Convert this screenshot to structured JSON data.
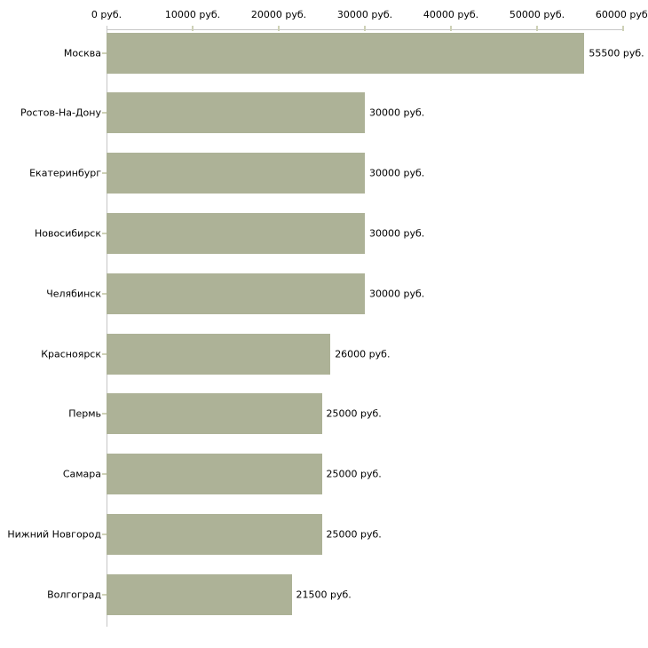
{
  "chart_data": {
    "type": "bar",
    "orientation": "horizontal",
    "title": "",
    "xlabel": "",
    "ylabel": "",
    "unit": "руб.",
    "categories": [
      "Москва",
      "Ростов-На-Дону",
      "Екатеринбург",
      "Новосибирск",
      "Челябинск",
      "Красноярск",
      "Пермь",
      "Самара",
      "Нижний Новгород",
      "Волгоград"
    ],
    "values": [
      55500,
      30000,
      30000,
      30000,
      30000,
      26000,
      25000,
      25000,
      25000,
      21500
    ],
    "value_labels": [
      "55500 руб.",
      "30000 руб.",
      "30000 руб.",
      "30000 руб.",
      "30000 руб.",
      "26000 руб.",
      "25000 руб.",
      "25000 руб.",
      "25000 руб.",
      "21500 руб."
    ],
    "x_ticks": [
      0,
      10000,
      20000,
      30000,
      40000,
      50000,
      60000
    ],
    "x_tick_labels": [
      "0 руб.",
      "10000 руб.",
      "20000 руб.",
      "30000 руб.",
      "40000 руб.",
      "50000 руб.",
      "60000 руб."
    ],
    "xlim": [
      0,
      60000
    ],
    "grid": false,
    "legend": false,
    "colors": {
      "bar": "#adb297",
      "axis": "#c6c6c6",
      "tick": "#ced1b6",
      "text": "#000000",
      "background": "#ffffff"
    }
  }
}
